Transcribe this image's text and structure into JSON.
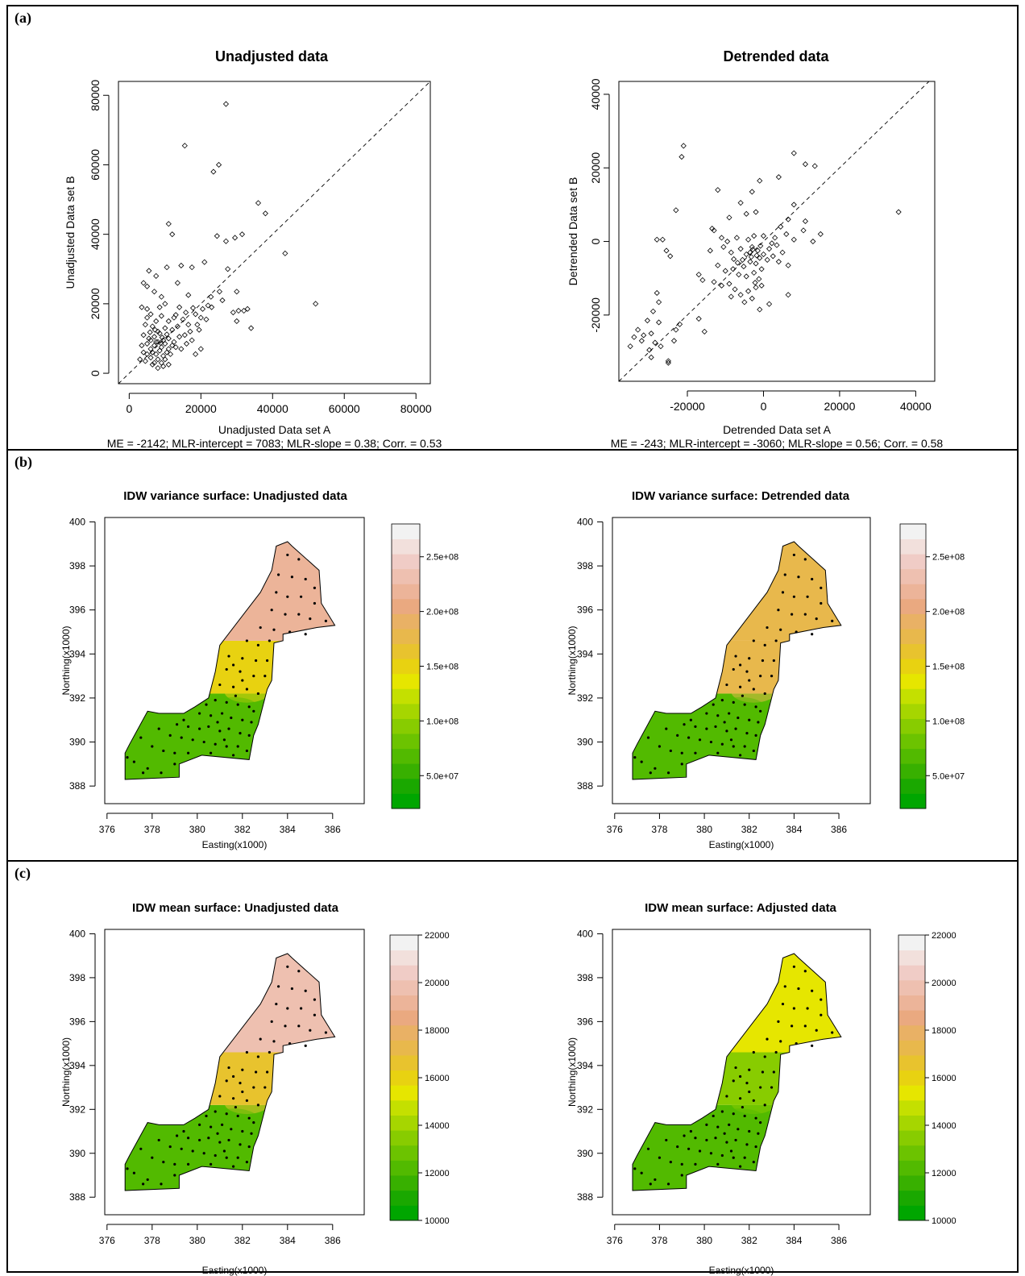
{
  "panels": [
    {
      "label": "(a)"
    },
    {
      "label": "(b)"
    },
    {
      "label": "(c)"
    }
  ],
  "chart_data": [
    {
      "type": "scatter",
      "title": "Unadjusted data",
      "xlabel": "Unadjusted Data set A",
      "ylabel": "Unadjusted Data set B",
      "stats": "ME = -2142; MLR-intercept = 7083; MLR-slope = 0.38; Corr. = 0.53",
      "xlim": [
        -3000,
        84000
      ],
      "ylim": [
        -3000,
        84000
      ],
      "xticks": [
        0,
        20000,
        40000,
        60000,
        80000
      ],
      "yticks": [
        0,
        20000,
        40000,
        60000,
        80000
      ],
      "reference_line": "1:1 dashed",
      "points": [
        [
          27000,
          77500
        ],
        [
          15500,
          65500
        ],
        [
          25000,
          60000
        ],
        [
          23500,
          58000
        ],
        [
          36000,
          49000
        ],
        [
          38000,
          46000
        ],
        [
          11000,
          43000
        ],
        [
          12000,
          40000
        ],
        [
          24500,
          39500
        ],
        [
          29500,
          39000
        ],
        [
          31500,
          40000
        ],
        [
          27000,
          38000
        ],
        [
          43500,
          34500
        ],
        [
          10500,
          30500
        ],
        [
          14500,
          31000
        ],
        [
          5500,
          29500
        ],
        [
          7500,
          28000
        ],
        [
          17500,
          30500
        ],
        [
          21000,
          32000
        ],
        [
          4000,
          26000
        ],
        [
          5000,
          25000
        ],
        [
          13500,
          26000
        ],
        [
          27500,
          30000
        ],
        [
          7000,
          23500
        ],
        [
          9000,
          22000
        ],
        [
          16500,
          22500
        ],
        [
          26000,
          21000
        ],
        [
          30000,
          23500
        ],
        [
          52000,
          20000
        ],
        [
          3500,
          19000
        ],
        [
          5000,
          18500
        ],
        [
          8500,
          19000
        ],
        [
          10000,
          20000
        ],
        [
          14000,
          19000
        ],
        [
          18500,
          17000
        ],
        [
          20500,
          18500
        ],
        [
          22000,
          19500
        ],
        [
          23000,
          19000
        ],
        [
          30500,
          18000
        ],
        [
          32000,
          18000
        ],
        [
          33000,
          18500
        ],
        [
          29000,
          17500
        ],
        [
          30000,
          15000
        ],
        [
          34000,
          13000
        ],
        [
          5000,
          16000
        ],
        [
          6000,
          17000
        ],
        [
          7500,
          15000
        ],
        [
          9000,
          16500
        ],
        [
          11000,
          15000
        ],
        [
          12500,
          16000
        ],
        [
          15000,
          15500
        ],
        [
          16500,
          14000
        ],
        [
          19000,
          14000
        ],
        [
          20000,
          16000
        ],
        [
          21500,
          15500
        ],
        [
          4500,
          14000
        ],
        [
          6500,
          13500
        ],
        [
          8000,
          12000
        ],
        [
          10000,
          13000
        ],
        [
          12000,
          12500
        ],
        [
          13500,
          13500
        ],
        [
          15500,
          11000
        ],
        [
          17000,
          12000
        ],
        [
          19500,
          12500
        ],
        [
          4000,
          11000
        ],
        [
          5500,
          10000
        ],
        [
          7000,
          10500
        ],
        [
          8500,
          11500
        ],
        [
          9500,
          9500
        ],
        [
          11000,
          10000
        ],
        [
          12500,
          9000
        ],
        [
          14000,
          10500
        ],
        [
          3500,
          8000
        ],
        [
          5000,
          8500
        ],
        [
          6000,
          7000
        ],
        [
          7000,
          8000
        ],
        [
          8000,
          9000
        ],
        [
          9000,
          7500
        ],
        [
          10000,
          8500
        ],
        [
          11000,
          7000
        ],
        [
          12000,
          8000
        ],
        [
          13000,
          7500
        ],
        [
          4000,
          6000
        ],
        [
          5000,
          5500
        ],
        [
          6500,
          6000
        ],
        [
          7500,
          5500
        ],
        [
          8500,
          6500
        ],
        [
          9500,
          5000
        ],
        [
          10500,
          6000
        ],
        [
          11500,
          5500
        ],
        [
          3000,
          4000
        ],
        [
          4500,
          3500
        ],
        [
          6000,
          4500
        ],
        [
          7000,
          3000
        ],
        [
          8000,
          4000
        ],
        [
          9000,
          3000
        ],
        [
          10000,
          4000
        ],
        [
          14500,
          7000
        ],
        [
          16000,
          8500
        ],
        [
          17500,
          9500
        ],
        [
          18500,
          5500
        ],
        [
          20000,
          7000
        ],
        [
          6500,
          2500
        ],
        [
          8000,
          1500
        ],
        [
          9500,
          2000
        ],
        [
          11000,
          2500
        ],
        [
          6000,
          9500
        ],
        [
          7500,
          9000
        ],
        [
          8800,
          8700
        ],
        [
          9200,
          10300
        ],
        [
          10500,
          11200
        ],
        [
          7200,
          12500
        ],
        [
          5800,
          11800
        ],
        [
          13000,
          16800
        ],
        [
          15800,
          17500
        ],
        [
          17800,
          18800
        ],
        [
          22800,
          22000
        ],
        [
          25200,
          23500
        ]
      ]
    },
    {
      "type": "scatter",
      "title": "Detrended data",
      "xlabel": "Detrended Data set A",
      "ylabel": "Detrended Data set B",
      "stats": "ME = -243; MLR-intercept = -3060; MLR-slope = 0.56; Corr. = 0.58",
      "xlim": [
        -38000,
        45000
      ],
      "ylim": [
        -38000,
        43500
      ],
      "xticks": [
        -20000,
        0,
        20000,
        40000
      ],
      "yticks": [
        -20000,
        0,
        20000,
        40000
      ],
      "reference_line": "1:1 dashed",
      "points": [
        [
          -21000,
          26000
        ],
        [
          -21500,
          23000
        ],
        [
          8000,
          24000
        ],
        [
          11000,
          21000
        ],
        [
          13500,
          20500
        ],
        [
          4000,
          17500
        ],
        [
          -12000,
          14000
        ],
        [
          -1000,
          16500
        ],
        [
          -3000,
          13500
        ],
        [
          -6000,
          10500
        ],
        [
          -23000,
          8500
        ],
        [
          8000,
          10000
        ],
        [
          35500,
          8000
        ],
        [
          -9000,
          6500
        ],
        [
          -4500,
          7500
        ],
        [
          -2000,
          8000
        ],
        [
          4500,
          4000
        ],
        [
          6500,
          6000
        ],
        [
          11000,
          5500
        ],
        [
          -13500,
          3500
        ],
        [
          -13000,
          3000
        ],
        [
          -11000,
          1000
        ],
        [
          -9500,
          0
        ],
        [
          -7000,
          1000
        ],
        [
          -4000,
          500
        ],
        [
          -2500,
          1500
        ],
        [
          0,
          1500
        ],
        [
          3000,
          1000
        ],
        [
          6000,
          2000
        ],
        [
          8000,
          500
        ],
        [
          10500,
          3000
        ],
        [
          13000,
          0
        ],
        [
          15000,
          2000
        ],
        [
          -28000,
          500
        ],
        [
          -26500,
          500
        ],
        [
          -25500,
          -2500
        ],
        [
          -24500,
          -4000
        ],
        [
          -14000,
          -2500
        ],
        [
          -10500,
          -1500
        ],
        [
          -8500,
          -3000
        ],
        [
          -6000,
          -2000
        ],
        [
          -4500,
          -3500
        ],
        [
          -3000,
          -1500
        ],
        [
          -1500,
          -2500
        ],
        [
          0,
          -3500
        ],
        [
          1500,
          -2000
        ],
        [
          3500,
          -1000
        ],
        [
          5000,
          -3000
        ],
        [
          -5500,
          -5000
        ],
        [
          -3500,
          -5500
        ],
        [
          -2000,
          -6000
        ],
        [
          -1000,
          -4500
        ],
        [
          1000,
          -5000
        ],
        [
          2500,
          -4000
        ],
        [
          4000,
          -5500
        ],
        [
          -12000,
          -6500
        ],
        [
          -10000,
          -8000
        ],
        [
          -8000,
          -7500
        ],
        [
          -6500,
          -9000
        ],
        [
          -4500,
          -9500
        ],
        [
          -2500,
          -8500
        ],
        [
          -500,
          -7500
        ],
        [
          6500,
          -6500
        ],
        [
          -17000,
          -9000
        ],
        [
          -16000,
          -10500
        ],
        [
          -13000,
          -11000
        ],
        [
          -11000,
          -12000
        ],
        [
          -9000,
          -11500
        ],
        [
          -7500,
          -13000
        ],
        [
          -6000,
          -14500
        ],
        [
          -4000,
          -13500
        ],
        [
          -2000,
          -12500
        ],
        [
          -500,
          -12000
        ],
        [
          -28000,
          -14000
        ],
        [
          -27500,
          -16500
        ],
        [
          -8500,
          -15000
        ],
        [
          -5000,
          -16500
        ],
        [
          -3000,
          -15500
        ],
        [
          -1000,
          -18500
        ],
        [
          1500,
          -17000
        ],
        [
          6500,
          -14500
        ],
        [
          -29000,
          -19000
        ],
        [
          -30500,
          -21500
        ],
        [
          -27500,
          -22000
        ],
        [
          -17000,
          -21000
        ],
        [
          -15500,
          -24500
        ],
        [
          -23000,
          -24000
        ],
        [
          -22000,
          -22500
        ],
        [
          -33000,
          -24000
        ],
        [
          -31500,
          -25500
        ],
        [
          -29500,
          -25000
        ],
        [
          -28500,
          -27500
        ],
        [
          -27000,
          -28500
        ],
        [
          -34000,
          -26000
        ],
        [
          -32000,
          -27000
        ],
        [
          -30000,
          -29500
        ],
        [
          -29500,
          -31500
        ],
        [
          -25000,
          -32500
        ],
        [
          -25000,
          -33000
        ],
        [
          -23500,
          -27000
        ],
        [
          -35000,
          -28500
        ],
        [
          -3500,
          -3000
        ],
        [
          -2800,
          -2200
        ],
        [
          -1800,
          -3800
        ],
        [
          -3200,
          -4200
        ],
        [
          -800,
          -1200
        ],
        [
          2200,
          -500
        ],
        [
          -6800,
          -5800
        ],
        [
          -7800,
          -4800
        ],
        [
          -5200,
          -6800
        ],
        [
          -1200,
          -10200
        ],
        [
          -2200,
          -11200
        ]
      ]
    },
    {
      "type": "heatmap",
      "title": "IDW variance surface: Unadjusted data",
      "xlabel": "Easting(x1000)",
      "ylabel": "Northing(x1000)",
      "xlim": [
        375.9,
        387.4
      ],
      "ylim": [
        387.2,
        400.2
      ],
      "xticks": [
        376,
        378,
        380,
        382,
        384,
        386
      ],
      "yticks": [
        388,
        390,
        392,
        394,
        396,
        398,
        400
      ],
      "legend": {
        "min": 20000000,
        "max": 280000000,
        "ticks": [
          50000000,
          100000000,
          150000000,
          200000000,
          250000000
        ],
        "tick_labels": [
          "5.0e+07",
          "1.0e+08",
          "1.5e+08",
          "2.0e+08",
          "2.5e+08"
        ]
      },
      "zones": [
        {
          "ne_value": 225000000,
          "mid_value": 155000000,
          "sw_value": 70000000
        }
      ]
    },
    {
      "type": "heatmap",
      "title": "IDW variance surface: Detrended data",
      "xlabel": "Easting(x1000)",
      "ylabel": "Northing(x1000)",
      "xlim": [
        375.9,
        387.4
      ],
      "ylim": [
        387.2,
        400.2
      ],
      "xticks": [
        376,
        378,
        380,
        382,
        384,
        386
      ],
      "yticks": [
        388,
        390,
        392,
        394,
        396,
        398,
        400
      ],
      "legend": {
        "min": 20000000,
        "max": 280000000,
        "ticks": [
          50000000,
          100000000,
          150000000,
          200000000,
          250000000
        ],
        "tick_labels": [
          "5.0e+07",
          "1.0e+08",
          "1.5e+08",
          "2.0e+08",
          "2.5e+08"
        ]
      },
      "zones": [
        {
          "ne_value": 175000000,
          "mid_value": 175000000,
          "sw_value": 70000000
        }
      ]
    },
    {
      "type": "heatmap",
      "title": "IDW mean surface: Unadjusted data",
      "xlabel": "Easting(x1000)",
      "ylabel": "Northing(x1000)",
      "xlim": [
        375.9,
        387.4
      ],
      "ylim": [
        387.2,
        400.2
      ],
      "xticks": [
        376,
        378,
        380,
        382,
        384,
        386
      ],
      "yticks": [
        388,
        390,
        392,
        394,
        396,
        398,
        400
      ],
      "legend": {
        "min": 10000,
        "max": 22000,
        "ticks": [
          10000,
          12000,
          14000,
          16000,
          18000,
          20000,
          22000
        ],
        "tick_labels": [
          "10000",
          "12000",
          "14000",
          "16000",
          "18000",
          "20000",
          "22000"
        ]
      },
      "zones": [
        {
          "ne_value": 19500,
          "mid_value": 16800,
          "sw_value": 12500
        }
      ]
    },
    {
      "type": "heatmap",
      "title": "IDW mean surface: Adjusted data",
      "xlabel": "Easting(x1000)",
      "ylabel": "Northing(x1000)",
      "xlim": [
        375.9,
        387.4
      ],
      "ylim": [
        387.2,
        400.2
      ],
      "xticks": [
        376,
        378,
        380,
        382,
        384,
        386
      ],
      "yticks": [
        388,
        390,
        392,
        394,
        396,
        398,
        400
      ],
      "legend": {
        "min": 10000,
        "max": 22000,
        "ticks": [
          10000,
          12000,
          14000,
          16000,
          18000,
          20000,
          22000
        ],
        "tick_labels": [
          "10000",
          "12000",
          "14000",
          "16000",
          "18000",
          "20000",
          "22000"
        ]
      },
      "zones": [
        {
          "ne_value": 15500,
          "mid_value": 13500,
          "sw_value": 12200
        }
      ]
    }
  ]
}
